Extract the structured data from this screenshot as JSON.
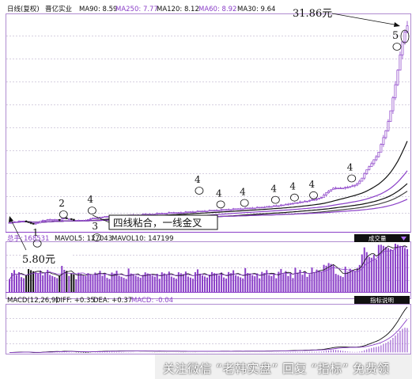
{
  "header": {
    "chart_name": "日线(复权)",
    "stock_name": "晋亿实业",
    "ma_items": [
      {
        "label": "MA90: 8.59",
        "color": "#111111"
      },
      {
        "label": "MA250: 7.77",
        "color": "#8b40c8"
      },
      {
        "label": "MA120: 8.12",
        "color": "#111111"
      },
      {
        "label": "MA60: 8.92",
        "color": "#8b40c8"
      },
      {
        "label": "MA30: 9.64",
        "color": "#111111"
      }
    ]
  },
  "annotations": {
    "high_price": "31.86元",
    "low_price": "5.80元",
    "note_box": "四线粘合，一线金叉",
    "marks": [
      {
        "text": "1",
        "x_index": 11,
        "price": 4.3
      },
      {
        "text": "2",
        "x_index": 22,
        "price": 8.1
      },
      {
        "text": "3",
        "x_index": 36,
        "price": 5.1
      },
      {
        "text": "4",
        "x_index": 34,
        "price": 8.6
      },
      {
        "text": "4",
        "x_index": 79,
        "price": 11.2
      },
      {
        "text": "4",
        "x_index": 88,
        "price": 9.4
      },
      {
        "text": "4",
        "x_index": 98,
        "price": 9.6
      },
      {
        "text": "4",
        "x_index": 111,
        "price": 10.0
      },
      {
        "text": "4",
        "x_index": 119,
        "price": 10.3
      },
      {
        "text": "4",
        "x_index": 127,
        "price": 10.6
      },
      {
        "text": "4",
        "x_index": 143,
        "price": 12.8
      },
      {
        "text": "5",
        "x_index": 162,
        "price": 30.0
      }
    ]
  },
  "volume_panel": {
    "label_prefix": "总手:",
    "total": "168531",
    "mavol5": "MAVOL5: 127043",
    "mavol10": "MAVOL10: 147199",
    "button": "成交量"
  },
  "macd_panel": {
    "label": "MACD(12,26,9)",
    "diff": "DIFF: +0.35",
    "dea": "DEA: +0.37",
    "macd": "MACD: -0.04",
    "button": "指标说明"
  },
  "watermark": "关注微信 “老韩实盘” 回复 “指标” 免费领",
  "colors": {
    "up": "#8b40c8",
    "down": "#111111",
    "grid": "#c9c0d6",
    "axis": "#b08cd0"
  },
  "chart_data": {
    "type": "candlestick",
    "title": "日线(复权) 晋亿实业",
    "ylim": [
      5,
      33
    ],
    "low_label": 5.8,
    "high_label": 31.86,
    "close": [
      6.0,
      6.0,
      6.1,
      6.1,
      6.2,
      6.2,
      6.2,
      6.1,
      6.0,
      5.9,
      5.8,
      5.9,
      6.0,
      6.2,
      6.3,
      6.3,
      6.4,
      6.4,
      6.4,
      6.4,
      6.4,
      6.3,
      6.5,
      6.6,
      6.5,
      6.5,
      6.4,
      6.3,
      6.3,
      6.3,
      6.3,
      6.3,
      6.3,
      6.4,
      6.5,
      6.6,
      6.6,
      6.6,
      6.7,
      6.7,
      6.8,
      6.8,
      6.8,
      6.8,
      6.8,
      6.9,
      6.9,
      6.9,
      6.9,
      6.9,
      7.0,
      7.0,
      7.0,
      7.0,
      7.0,
      7.0,
      7.1,
      7.1,
      7.1,
      7.1,
      7.1,
      7.1,
      7.2,
      7.2,
      7.2,
      7.2,
      7.2,
      7.3,
      7.3,
      7.3,
      7.3,
      7.3,
      7.3,
      7.3,
      7.4,
      7.4,
      7.4,
      7.4,
      7.4,
      7.5,
      7.5,
      7.5,
      7.5,
      7.5,
      7.6,
      7.6,
      7.6,
      7.6,
      7.6,
      7.7,
      7.7,
      7.7,
      7.7,
      7.7,
      7.8,
      7.8,
      7.8,
      7.8,
      7.8,
      7.9,
      7.9,
      7.9,
      7.9,
      7.9,
      8.0,
      8.0,
      8.0,
      8.0,
      8.1,
      8.1,
      8.1,
      8.2,
      8.2,
      8.2,
      8.3,
      8.3,
      8.4,
      8.4,
      8.5,
      8.5,
      8.6,
      8.6,
      8.7,
      8.7,
      8.8,
      8.8,
      8.9,
      9.0,
      9.0,
      9.1,
      9.2,
      9.3,
      9.6,
      9.9,
      10.1,
      10.3,
      10.5,
      10.5,
      10.5,
      10.5,
      10.5,
      10.6,
      10.6,
      10.7,
      10.8,
      10.9,
      11.1,
      11.4,
      11.8,
      12.4,
      12.9,
      13.3,
      13.7,
      14.2,
      14.6,
      15.2,
      16.2,
      17.1,
      18.0,
      19.2,
      20.6,
      22.3,
      24.0,
      25.9,
      27.9,
      29.6,
      30.9,
      31.7
    ]
  }
}
